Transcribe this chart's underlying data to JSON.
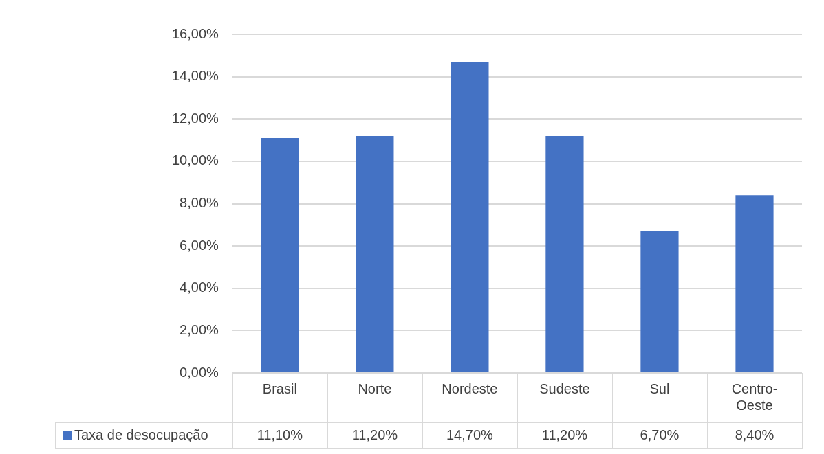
{
  "chart_data": {
    "type": "bar",
    "categories": [
      "Brasil",
      "Norte",
      "Nordeste",
      "Sudeste",
      "Sul",
      "Centro-Oeste"
    ],
    "series": [
      {
        "name": "Taxa de desocupação",
        "color": "#4472c4",
        "values": [
          11.1,
          11.2,
          14.7,
          11.2,
          6.7,
          8.4
        ],
        "value_labels": [
          "11,10%",
          "11,20%",
          "14,70%",
          "11,20%",
          "6,70%",
          "8,40%"
        ]
      }
    ],
    "ylim": [
      0,
      16
    ],
    "yticks": [
      {
        "value": 0,
        "label": "0,00%"
      },
      {
        "value": 2,
        "label": "2,00%"
      },
      {
        "value": 4,
        "label": "4,00%"
      },
      {
        "value": 6,
        "label": "6,00%"
      },
      {
        "value": 8,
        "label": "8,00%"
      },
      {
        "value": 10,
        "label": "10,00%"
      },
      {
        "value": 12,
        "label": "12,00%"
      },
      {
        "value": 14,
        "label": "14,00%"
      },
      {
        "value": 16,
        "label": "16,00%"
      }
    ],
    "grid": "y",
    "legend": "bottom"
  }
}
